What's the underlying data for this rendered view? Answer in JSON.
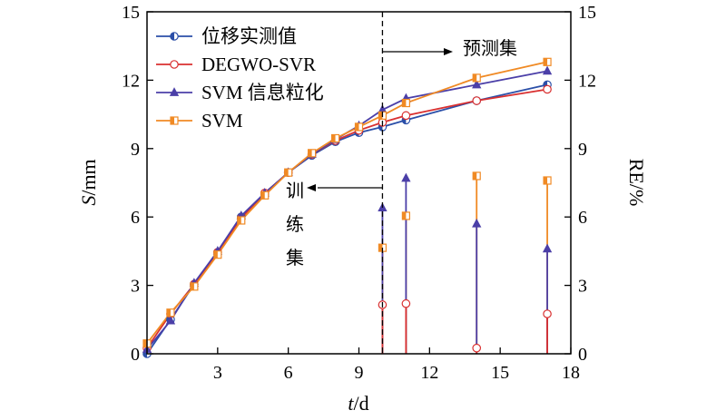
{
  "chart_data": {
    "type": "line",
    "xlabel": "t/d",
    "ylabel_left": "S/mm",
    "ylabel_right": "RE/%",
    "xlim": [
      0,
      18
    ],
    "ylim_left": [
      0,
      15
    ],
    "ylim_right": [
      0,
      15
    ],
    "xticks": [
      3,
      6,
      9,
      12,
      15,
      18
    ],
    "yticks_left": [
      0,
      3,
      6,
      9,
      12,
      15
    ],
    "yticks_right": [
      0,
      3,
      6,
      9,
      12,
      15
    ],
    "legend_position": "top-left",
    "annotations": {
      "divider_x": 10,
      "forecast_label": "预测集",
      "train_label": "训练集"
    },
    "series": [
      {
        "name": "位移实测值",
        "color": "#2b4fa8",
        "marker": "circle-half",
        "x": [
          0,
          1,
          2,
          3,
          4,
          5,
          6,
          7,
          8,
          9,
          10,
          11,
          14,
          17
        ],
        "y": [
          0.0,
          1.5,
          3.05,
          4.45,
          6.0,
          7.0,
          7.95,
          8.7,
          9.3,
          9.7,
          9.95,
          10.25,
          11.1,
          11.8
        ]
      },
      {
        "name": "DEGWO-SVR",
        "color": "#d93030",
        "marker": "circle-open",
        "x": [
          0,
          1,
          2,
          3,
          4,
          5,
          6,
          7,
          8,
          9,
          10,
          11,
          14,
          17
        ],
        "y": [
          0.25,
          1.75,
          3.05,
          4.45,
          5.95,
          7.05,
          7.95,
          8.75,
          9.35,
          9.8,
          10.15,
          10.45,
          11.1,
          11.6
        ],
        "re_values": [
          2.15,
          2.2,
          0.25,
          1.75
        ]
      },
      {
        "name": "SVM 信息粒化",
        "color": "#4b3fa8",
        "marker": "triangle",
        "x": [
          0,
          1,
          2,
          3,
          4,
          5,
          6,
          7,
          8,
          9,
          10,
          11,
          14,
          17
        ],
        "y": [
          0.2,
          1.45,
          3.1,
          4.5,
          6.05,
          7.05,
          7.95,
          8.75,
          9.4,
          10.0,
          10.7,
          11.2,
          11.8,
          12.4
        ],
        "re_values": [
          6.4,
          7.7,
          5.7,
          4.6
        ]
      },
      {
        "name": "SVM",
        "color": "#f08a24",
        "marker": "square-half",
        "x": [
          0,
          1,
          2,
          3,
          4,
          5,
          6,
          7,
          8,
          9,
          10,
          11,
          14,
          17
        ],
        "y": [
          0.45,
          1.8,
          2.95,
          4.35,
          5.85,
          6.95,
          7.95,
          8.8,
          9.45,
          9.95,
          10.45,
          11.0,
          12.1,
          12.8
        ],
        "re_values": [
          4.65,
          6.05,
          7.8,
          7.6
        ]
      }
    ],
    "re_x": [
      10,
      11,
      14,
      17
    ]
  }
}
